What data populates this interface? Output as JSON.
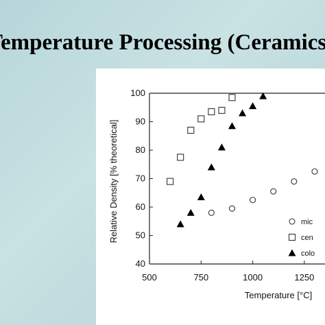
{
  "slide": {
    "title": "Temperature Processing (Ceramics)"
  },
  "chart_data": {
    "type": "scatter",
    "xlabel": "Temperature [°C]",
    "ylabel": "Relative Density [% theoretical]",
    "xlim": [
      500,
      1350
    ],
    "ylim": [
      40,
      100
    ],
    "xticks": [
      500,
      750,
      1000,
      1250
    ],
    "yticks": [
      40,
      50,
      60,
      70,
      80,
      90,
      100
    ],
    "legend": "bottom-right",
    "series": [
      {
        "name": "mic",
        "marker": "circle",
        "x": [
          800,
          900,
          1000,
          1100,
          1200,
          1300
        ],
        "y": [
          58,
          59.5,
          62.5,
          65.5,
          69,
          72.5
        ]
      },
      {
        "name": "cen",
        "marker": "square",
        "x": [
          600,
          650,
          700,
          750,
          800,
          850,
          900
        ],
        "y": [
          69,
          77.5,
          87,
          91,
          93.5,
          94,
          98.5
        ]
      },
      {
        "name": "colo",
        "marker": "triangle",
        "x": [
          650,
          700,
          750,
          800,
          850,
          900,
          950,
          1000,
          1050
        ],
        "y": [
          54,
          58,
          63.5,
          74,
          81,
          88.5,
          93,
          95.5,
          99
        ]
      }
    ]
  }
}
